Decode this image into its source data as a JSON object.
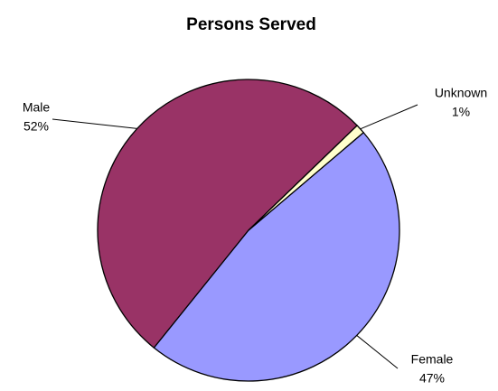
{
  "chart_data": {
    "type": "pie",
    "title": "Persons Served",
    "categories": [
      "Male",
      "Female",
      "Unknown"
    ],
    "values": [
      52,
      47,
      1
    ],
    "value_labels": [
      "52%",
      "47%",
      "1%"
    ],
    "colors": [
      "#993366",
      "#9999ff",
      "#ffffcc"
    ]
  }
}
